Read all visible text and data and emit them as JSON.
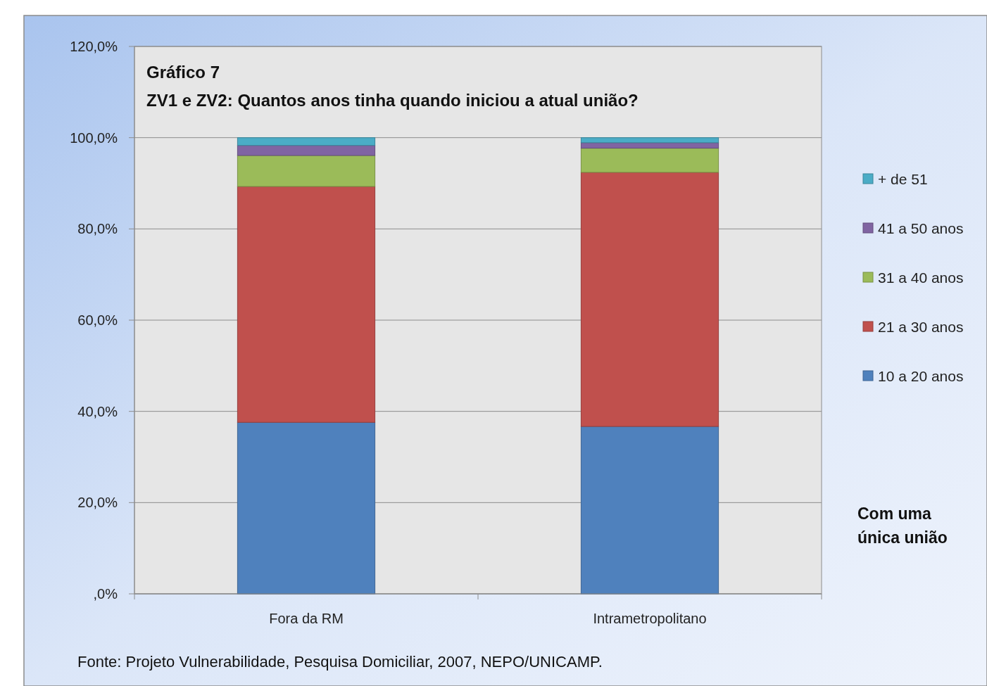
{
  "chart_data": {
    "type": "bar",
    "stacked": true,
    "title": "Gráfico 7",
    "subtitle": "ZV1 e ZV2: Quantos anos tinha quando iniciou a atual união?",
    "categories": [
      "Fora da RM",
      "Intrametropolitano"
    ],
    "series": [
      {
        "name": "10 a 20 anos",
        "color": "#4f81bd",
        "values": [
          37.6,
          36.7
        ]
      },
      {
        "name": "21 a 30 anos",
        "color": "#c0504d",
        "values": [
          51.7,
          55.7
        ]
      },
      {
        "name": "31 a 40 anos",
        "color": "#9bbb59",
        "values": [
          6.8,
          5.3
        ]
      },
      {
        "name": "41 a 50 anos",
        "color": "#8064a2",
        "values": [
          2.2,
          1.2
        ]
      },
      {
        "name": "+ de 51",
        "color": "#4bacc6",
        "values": [
          1.7,
          1.1
        ]
      }
    ],
    "ylim": [
      0,
      120
    ],
    "yticks": [
      {
        "value": 0,
        "label": ",0%"
      },
      {
        "value": 20,
        "label": "20,0%"
      },
      {
        "value": 40,
        "label": "40,0%"
      },
      {
        "value": 60,
        "label": "60,0%"
      },
      {
        "value": 80,
        "label": "80,0%"
      },
      {
        "value": 100,
        "label": "100,0%"
      },
      {
        "value": 120,
        "label": "120,0%"
      }
    ],
    "grid": "y",
    "legend": "right",
    "annotations": [
      "Com uma única união",
      "Fonte: Projeto Vulnerabilidade, Pesquisa Domiciliar, 2007, NEPO/UNICAMP."
    ]
  }
}
